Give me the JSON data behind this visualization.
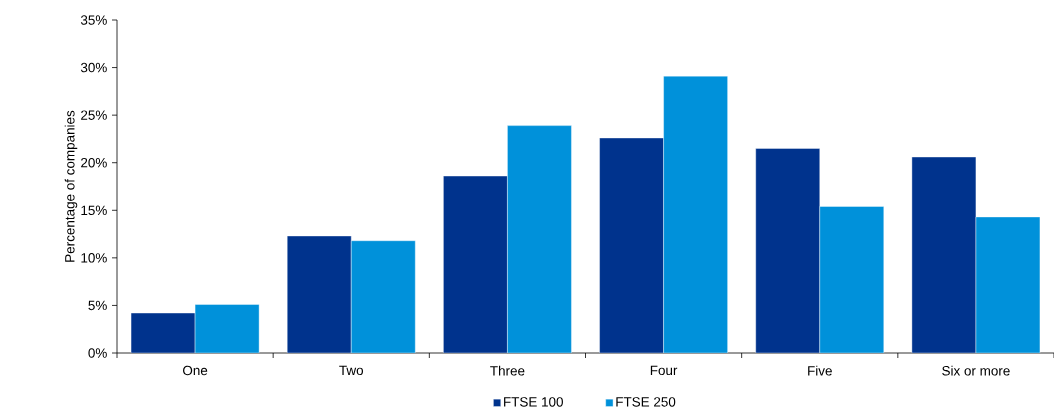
{
  "chart_data": {
    "type": "bar",
    "ylabel": "Percentage of companies",
    "categories": [
      "One",
      "Two",
      "Three",
      "Four",
      "Five",
      "Six or more"
    ],
    "series": [
      {
        "name": "FTSE 100",
        "color": "#00338d",
        "values": [
          4.2,
          12.3,
          18.6,
          22.6,
          21.5,
          20.6
        ]
      },
      {
        "name": "FTSE 250",
        "color": "#0091da",
        "values": [
          5.1,
          11.8,
          23.9,
          29.1,
          15.4,
          14.3
        ]
      }
    ],
    "ylim": [
      0,
      35
    ],
    "yticks": [
      {
        "value": 0,
        "label": "0%"
      },
      {
        "value": 5,
        "label": "5%"
      },
      {
        "value": 10,
        "label": "10%"
      },
      {
        "value": 15,
        "label": "15%"
      },
      {
        "value": 20,
        "label": "20%"
      },
      {
        "value": 25,
        "label": "25%"
      },
      {
        "value": 30,
        "label": "30%"
      },
      {
        "value": 35,
        "label": "35%"
      }
    ],
    "grid": false,
    "legend": "bottom"
  }
}
